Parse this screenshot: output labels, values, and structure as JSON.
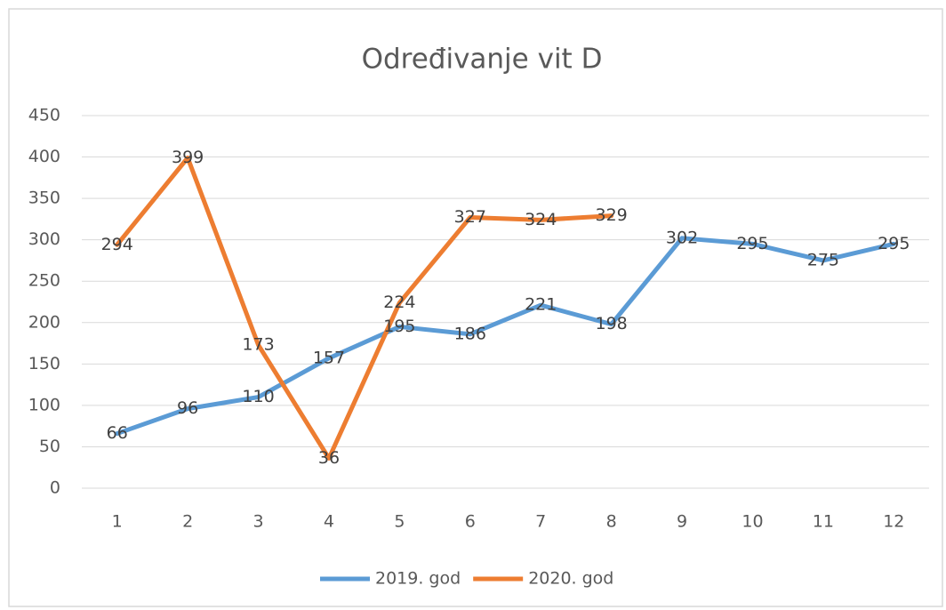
{
  "chart_data": {
    "type": "line",
    "title": "Određivanje vit D",
    "categories": [
      "1",
      "2",
      "3",
      "4",
      "5",
      "6",
      "7",
      "8",
      "9",
      "10",
      "11",
      "12"
    ],
    "series": [
      {
        "name": "2019. god",
        "color": "#5b9bd5",
        "values": [
          66,
          96,
          110,
          157,
          195,
          186,
          221,
          198,
          302,
          295,
          275,
          295
        ]
      },
      {
        "name": "2020. god",
        "color": "#ed7d31",
        "values": [
          294,
          399,
          173,
          36,
          224,
          327,
          324,
          329,
          null,
          null,
          null,
          null
        ]
      }
    ],
    "ylim": [
      0,
      450
    ],
    "yticks": [
      0,
      50,
      100,
      150,
      200,
      250,
      300,
      350,
      400,
      450
    ],
    "grid": true,
    "legend": "bottom"
  }
}
